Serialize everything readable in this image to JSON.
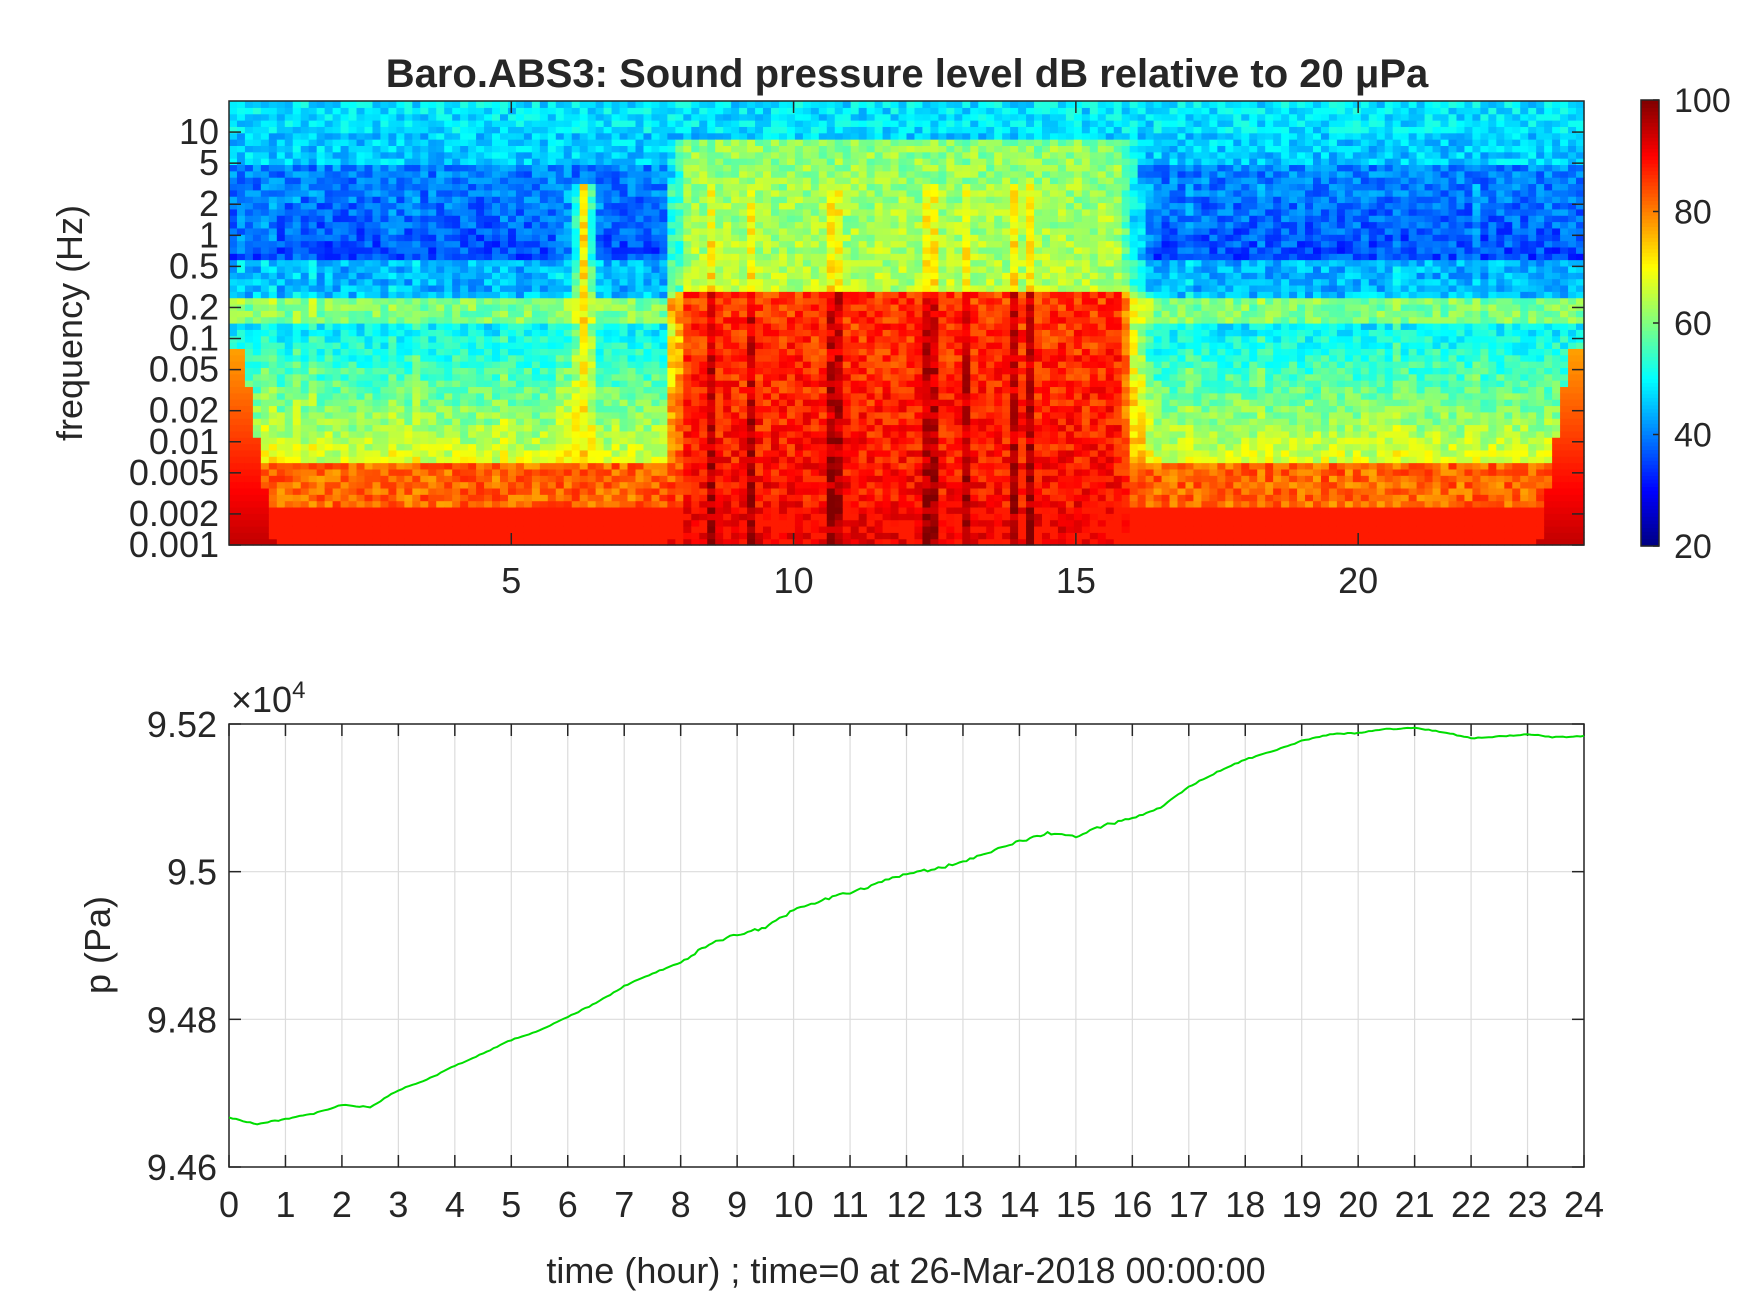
{
  "chart_data": [
    {
      "type": "heatmap",
      "title": "Baro.ABS3: Sound pressure level dB relative to 20 μPa",
      "xlabel": "",
      "ylabel": "frequency (Hz)",
      "xlim": [
        0,
        24
      ],
      "x_ticks": [
        5,
        10,
        15,
        20
      ],
      "y_scale": "log",
      "ylim": [
        0.001,
        20
      ],
      "y_ticks": [
        0.001,
        0.002,
        0.005,
        0.01,
        0.02,
        0.05,
        0.1,
        0.2,
        0.5,
        1,
        2,
        5,
        10
      ],
      "y_tick_labels": [
        "0.001",
        "0.002",
        "0.005",
        "0.01",
        "0.02",
        "0.05",
        "0.1",
        "0.2",
        "0.5",
        "1",
        "2",
        "5",
        "10"
      ],
      "colormap": "jet",
      "colorbar": {
        "range": [
          20,
          100
        ],
        "ticks": [
          20,
          40,
          60,
          80,
          100
        ]
      },
      "active_period_hours": [
        7.7,
        16.2
      ],
      "transient_event_hour": 6.3,
      "microbarom_band_hz": [
        0.15,
        0.25
      ],
      "colors": {
        "low": "#00008f",
        "high": "#7f0000"
      }
    },
    {
      "type": "line",
      "title": "",
      "xlabel": "time (hour) ; time=0 at 26-Mar-2018 00:00:00",
      "ylabel": "p (Pa)",
      "xlim": [
        0,
        24
      ],
      "x_ticks": [
        0,
        1,
        2,
        3,
        4,
        5,
        6,
        7,
        8,
        9,
        10,
        11,
        12,
        13,
        14,
        15,
        16,
        17,
        18,
        19,
        20,
        21,
        22,
        23,
        24
      ],
      "ylim": [
        9.46,
        9.52
      ],
      "y_ticks": [
        9.46,
        9.48,
        9.5,
        9.52
      ],
      "y_tick_labels": [
        "9.46",
        "9.48",
        "9.5",
        "9.52"
      ],
      "exponent_label": "×10",
      "exponent_power": "4",
      "grid": true,
      "series": [
        {
          "color": "#00dd00",
          "x": [
            0,
            0.5,
            1,
            1.5,
            2,
            2.5,
            3,
            3.5,
            4,
            4.5,
            5,
            5.5,
            6,
            6.5,
            7,
            7.5,
            8,
            8.5,
            9,
            9.5,
            10,
            10.5,
            11,
            11.5,
            12,
            12.5,
            13,
            13.5,
            14,
            14.5,
            15,
            15.5,
            16,
            16.5,
            17,
            17.5,
            18,
            18.5,
            19,
            19.5,
            20,
            20.5,
            21,
            21.5,
            22,
            22.5,
            23,
            23.5,
            24
          ],
          "y": [
            9.4667,
            9.4658,
            9.4665,
            9.4672,
            9.4684,
            9.4681,
            9.4704,
            9.4718,
            9.4737,
            9.4754,
            9.4772,
            9.4785,
            9.4803,
            9.4822,
            9.4845,
            9.4862,
            9.4877,
            9.4902,
            9.4915,
            9.4924,
            9.4948,
            9.4961,
            9.4972,
            9.4984,
            9.4998,
            9.5003,
            9.5014,
            9.5028,
            9.5041,
            9.5052,
            9.5048,
            9.5063,
            9.5072,
            9.5087,
            9.5115,
            9.5135,
            9.5152,
            9.5163,
            9.5177,
            9.5186,
            9.5188,
            9.5193,
            9.5195,
            9.5189,
            9.5181,
            9.5183,
            9.5186,
            9.5182,
            9.5184
          ]
        }
      ]
    }
  ]
}
